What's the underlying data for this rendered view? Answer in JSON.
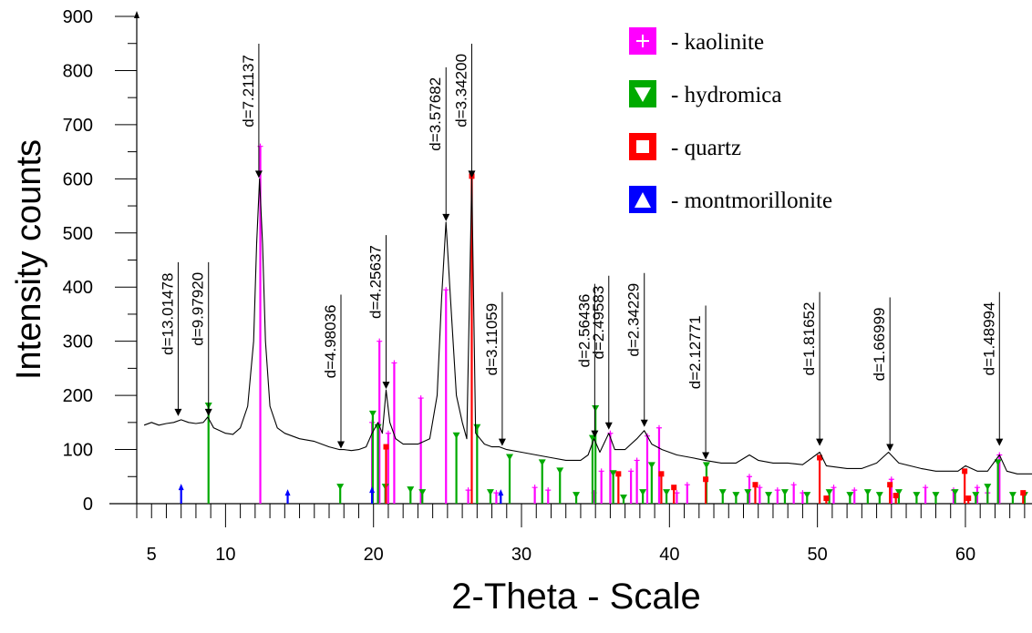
{
  "chart_data": {
    "type": "line",
    "xlabel": "2-Theta - Scale",
    "ylabel": "Intensity counts",
    "xlim": [
      4.0,
      64.5
    ],
    "ylim": [
      0,
      900
    ],
    "x_ticks": [
      5,
      10,
      20,
      30,
      40,
      50,
      60
    ],
    "y_ticks": [
      0,
      100,
      200,
      300,
      400,
      500,
      600,
      700,
      800,
      900
    ],
    "grid": false,
    "legend_position": "top-right",
    "legend": [
      {
        "label": "- kaolinite",
        "color": "#ff00ff",
        "marker": "plus"
      },
      {
        "label": "- hydromica",
        "color": "#00aa00",
        "marker": "triangle-down"
      },
      {
        "label": "- quartz",
        "color": "#ff0000",
        "marker": "square"
      },
      {
        "label": "- montmorillonite",
        "color": "#0000ff",
        "marker": "triangle-up"
      }
    ],
    "pattern": [
      [
        4.5,
        145
      ],
      [
        5,
        150
      ],
      [
        5.5,
        145
      ],
      [
        6,
        148
      ],
      [
        6.5,
        150
      ],
      [
        7,
        155
      ],
      [
        7.5,
        150
      ],
      [
        8,
        148
      ],
      [
        8.5,
        150
      ],
      [
        8.8,
        160
      ],
      [
        9.2,
        140
      ],
      [
        10,
        130
      ],
      [
        10.5,
        128
      ],
      [
        11,
        140
      ],
      [
        11.5,
        180
      ],
      [
        11.9,
        300
      ],
      [
        12.1,
        480
      ],
      [
        12.3,
        600
      ],
      [
        12.5,
        480
      ],
      [
        12.7,
        300
      ],
      [
        13.0,
        180
      ],
      [
        13.5,
        140
      ],
      [
        14,
        130
      ],
      [
        14.5,
        125
      ],
      [
        15,
        120
      ],
      [
        16,
        115
      ],
      [
        17,
        105
      ],
      [
        17.7,
        100
      ],
      [
        18,
        100
      ],
      [
        18.5,
        98
      ],
      [
        19,
        100
      ],
      [
        19.5,
        105
      ],
      [
        19.9,
        130
      ],
      [
        20.3,
        150
      ],
      [
        20.6,
        130
      ],
      [
        20.85,
        210
      ],
      [
        21.1,
        150
      ],
      [
        21.5,
        120
      ],
      [
        22,
        110
      ],
      [
        23,
        110
      ],
      [
        23.8,
        120
      ],
      [
        24.3,
        200
      ],
      [
        24.6,
        380
      ],
      [
        24.9,
        520
      ],
      [
        25.2,
        380
      ],
      [
        25.6,
        200
      ],
      [
        26,
        150
      ],
      [
        26.3,
        120
      ],
      [
        26.64,
        600
      ],
      [
        26.9,
        130
      ],
      [
        27.5,
        110
      ],
      [
        28,
        105
      ],
      [
        28.5,
        105
      ],
      [
        29,
        100
      ],
      [
        30,
        95
      ],
      [
        31,
        90
      ],
      [
        32,
        85
      ],
      [
        33,
        80
      ],
      [
        34,
        80
      ],
      [
        34.5,
        90
      ],
      [
        34.9,
        120
      ],
      [
        35.3,
        95
      ],
      [
        35.9,
        130
      ],
      [
        36.3,
        100
      ],
      [
        37,
        100
      ],
      [
        37.8,
        120
      ],
      [
        38.3,
        135
      ],
      [
        38.8,
        110
      ],
      [
        39.5,
        100
      ],
      [
        40.5,
        90
      ],
      [
        41.5,
        85
      ],
      [
        42.4,
        80
      ],
      [
        43.5,
        75
      ],
      [
        44.5,
        75
      ],
      [
        45.4,
        90
      ],
      [
        46,
        80
      ],
      [
        47,
        75
      ],
      [
        48,
        75
      ],
      [
        49,
        72
      ],
      [
        50.15,
        95
      ],
      [
        50.6,
        70
      ],
      [
        52,
        65
      ],
      [
        53,
        65
      ],
      [
        54,
        75
      ],
      [
        54.8,
        95
      ],
      [
        55.5,
        75
      ],
      [
        57,
        65
      ],
      [
        58,
        60
      ],
      [
        59.5,
        60
      ],
      [
        60,
        70
      ],
      [
        60.8,
        60
      ],
      [
        61.5,
        60
      ],
      [
        62.3,
        90
      ],
      [
        62.8,
        60
      ],
      [
        63.5,
        55
      ],
      [
        64.5,
        55
      ]
    ],
    "peaks": [
      {
        "x": 6.8,
        "y": 160,
        "label": "d=13.01478"
      },
      {
        "x": 8.85,
        "y": 160,
        "label": "d=9.97920"
      },
      {
        "x": 12.25,
        "y": 600,
        "label": "d=7.21137"
      },
      {
        "x": 17.8,
        "y": 100,
        "label": "d=4.98036"
      },
      {
        "x": 20.85,
        "y": 210,
        "label": "d=4.25637"
      },
      {
        "x": 24.9,
        "y": 520,
        "label": "d=3.57682"
      },
      {
        "x": 26.64,
        "y": 600,
        "label": "d=3.34200"
      },
      {
        "x": 28.7,
        "y": 105,
        "label": "d=3.11059"
      },
      {
        "x": 34.95,
        "y": 120,
        "label": "d=2.56436"
      },
      {
        "x": 35.9,
        "y": 135,
        "label": "d=2.49583"
      },
      {
        "x": 38.3,
        "y": 140,
        "label": "d=2.34229"
      },
      {
        "x": 42.45,
        "y": 80,
        "label": "d=2.12771"
      },
      {
        "x": 50.15,
        "y": 105,
        "label": "d=1.81652"
      },
      {
        "x": 54.9,
        "y": 95,
        "label": "d=1.66999"
      },
      {
        "x": 62.3,
        "y": 105,
        "label": "d=1.48994"
      }
    ],
    "series": [
      {
        "name": "kaolinite",
        "color": "#ff00ff",
        "marker": "plus",
        "x": [
          12.35,
          19.9,
          20.4,
          21.0,
          21.4,
          23.2,
          24.9,
          26.4,
          28.3,
          30.9,
          31.8,
          34.9,
          35.4,
          36.0,
          37.4,
          37.8,
          38.5,
          39.3,
          40.5,
          41.2,
          45.4,
          46.1,
          47.3,
          48.4,
          49.0,
          51.1,
          52.5,
          55.0,
          57.3,
          59.2,
          60.8,
          61.5,
          62.3
        ],
        "y": [
          660,
          150,
          300,
          130,
          260,
          195,
          395,
          25,
          20,
          30,
          25,
          20,
          60,
          130,
          60,
          80,
          125,
          140,
          20,
          35,
          50,
          30,
          25,
          35,
          20,
          30,
          25,
          45,
          30,
          25,
          30,
          20,
          90
        ]
      },
      {
        "name": "hydromica",
        "color": "#00aa00",
        "marker": "triangle-down",
        "x": [
          8.85,
          17.75,
          19.95,
          20.3,
          20.8,
          22.5,
          23.3,
          25.6,
          27.0,
          27.9,
          29.2,
          31.4,
          32.6,
          33.7,
          34.8,
          35.0,
          36.2,
          36.9,
          38.2,
          38.8,
          39.8,
          42.5,
          43.6,
          44.5,
          45.3,
          46.7,
          47.8,
          49.3,
          50.8,
          52.2,
          53.4,
          54.2,
          55.5,
          56.7,
          58.0,
          59.3,
          60.7,
          61.5,
          62.2,
          63.2,
          64.0
        ],
        "y": [
          180,
          30,
          165,
          140,
          30,
          25,
          20,
          125,
          140,
          20,
          85,
          75,
          60,
          15,
          120,
          175,
          55,
          10,
          20,
          70,
          20,
          70,
          20,
          15,
          20,
          15,
          20,
          15,
          20,
          15,
          20,
          15,
          20,
          15,
          15,
          20,
          15,
          30,
          75,
          15,
          15
        ]
      },
      {
        "name": "quartz",
        "color": "#ff0000",
        "marker": "square",
        "x": [
          20.85,
          26.64,
          36.55,
          39.45,
          40.3,
          42.45,
          45.8,
          50.15,
          50.6,
          54.9,
          55.3,
          59.95,
          60.2,
          63.9
        ],
        "y": [
          105,
          605,
          55,
          55,
          30,
          45,
          35,
          85,
          10,
          35,
          15,
          60,
          10,
          20
        ]
      },
      {
        "name": "montmorillonite",
        "color": "#0000ff",
        "marker": "triangle-up",
        "x": [
          7.0,
          14.2,
          19.9,
          28.6
        ],
        "y": [
          30,
          20,
          25,
          20
        ]
      }
    ]
  }
}
